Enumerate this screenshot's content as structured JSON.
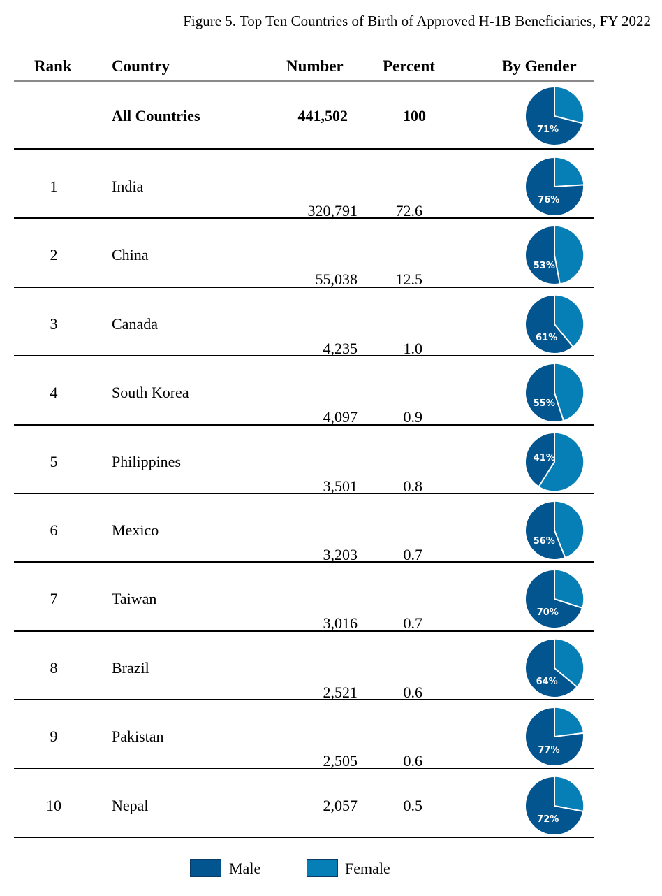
{
  "title": "Figure 5. Top Ten Countries of Birth of Approved H-1B Beneficiaries, FY 2022",
  "headers": {
    "rank": "Rank",
    "country": "Country",
    "number": "Number",
    "percent": "Percent",
    "gender": "By Gender"
  },
  "colors": {
    "male": "#03558f",
    "female": "#057fb5",
    "header_rule": "#8a8a8a",
    "rule": "#000000"
  },
  "legend": {
    "male": "Male",
    "female": "Female"
  },
  "chart_data": {
    "type": "table",
    "title": "Figure 5. Top Ten Countries of Birth of Approved H-1B Beneficiaries, FY 2022",
    "columns": [
      "Rank",
      "Country",
      "Number",
      "Percent",
      "By Gender"
    ],
    "total": {
      "country": "All Countries",
      "number": "441,502",
      "percent": "100",
      "male_pct": 71,
      "male_label": "71%"
    },
    "rows": [
      {
        "rank": "1",
        "country": "India",
        "number": "320,791",
        "percent": "72.6",
        "male_pct": 76,
        "male_label": "76%"
      },
      {
        "rank": "2",
        "country": "China",
        "number": "55,038",
        "percent": "12.5",
        "male_pct": 53,
        "male_label": "53%"
      },
      {
        "rank": "3",
        "country": "Canada",
        "number": "4,235",
        "percent": "1.0",
        "male_pct": 61,
        "male_label": "61%"
      },
      {
        "rank": "4",
        "country": "South Korea",
        "number": "4,097",
        "percent": "0.9",
        "male_pct": 55,
        "male_label": "55%"
      },
      {
        "rank": "5",
        "country": "Philippines",
        "number": "3,501",
        "percent": "0.8",
        "male_pct": 41,
        "male_label": "41%"
      },
      {
        "rank": "6",
        "country": "Mexico",
        "number": "3,203",
        "percent": "0.7",
        "male_pct": 56,
        "male_label": "56%"
      },
      {
        "rank": "7",
        "country": "Taiwan",
        "number": "3,016",
        "percent": "0.7",
        "male_pct": 70,
        "male_label": "70%"
      },
      {
        "rank": "8",
        "country": "Brazil",
        "number": "2,521",
        "percent": "0.6",
        "male_pct": 64,
        "male_label": "64%"
      },
      {
        "rank": "9",
        "country": "Pakistan",
        "number": "2,505",
        "percent": "0.6",
        "male_pct": 77,
        "male_label": "77%"
      },
      {
        "rank": "10",
        "country": "Nepal",
        "number": "2,057",
        "percent": "0.5",
        "male_pct": 72,
        "male_label": "72%"
      }
    ],
    "series": [
      {
        "name": "Male",
        "color": "#03558f"
      },
      {
        "name": "Female",
        "color": "#057fb5"
      }
    ]
  }
}
